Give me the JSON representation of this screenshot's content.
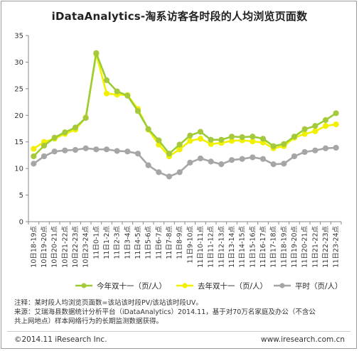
{
  "chart_data": {
    "type": "line",
    "title": "iDataAnalytics-淘系访客各时段的人均浏览页面数",
    "ylim": [
      0,
      35
    ],
    "yticks": [
      0,
      5,
      10,
      15,
      20,
      25,
      30,
      35
    ],
    "categories": [
      "10日18-19点",
      "10日19-20点",
      "10日20-21点",
      "10日21-22点",
      "10日22-23点",
      "10日23-24点",
      "11日0-1点",
      "11日1-2点",
      "11日2-3点",
      "11日3-4点",
      "11日4-5点",
      "11日5-6点",
      "11日6-7点",
      "11日7-8点",
      "11日8-9点",
      "11日9-10点",
      "11日10-11点",
      "11日11-12点",
      "11日12-13点",
      "11日13-14点",
      "11日14-15点",
      "11日15-16点",
      "11日16-17点",
      "11日17-18点",
      "11日18-19点",
      "11日19-20点",
      "11日20-21点",
      "11日21-22点",
      "11日22-23点",
      "11日23-24点"
    ],
    "series": [
      {
        "name": "今年双十一（页/人）",
        "color": "#9acd32",
        "marker_color": "#a6c83c",
        "values": [
          12.3,
          14.3,
          15.8,
          16.8,
          17.7,
          19.5,
          31.7,
          26.6,
          24.5,
          23.7,
          20.8,
          17.4,
          15.3,
          12.8,
          14.5,
          16.2,
          16.9,
          15.4,
          15.4,
          16.0,
          15.9,
          16.0,
          15.6,
          14.2,
          14.6,
          16.0,
          17.4,
          18.0,
          19.1,
          20.4
        ]
      },
      {
        "name": "去年双十一（页/人）",
        "color": "#f2f200",
        "marker_color": "#f0f000",
        "values": [
          13.7,
          15.0,
          15.6,
          16.5,
          17.3,
          19.6,
          31.5,
          24.1,
          23.9,
          23.8,
          21.2,
          17.3,
          14.5,
          12.3,
          13.6,
          15.2,
          15.6,
          14.6,
          14.8,
          15.2,
          15.3,
          15.1,
          14.9,
          13.8,
          14.2,
          15.8,
          16.5,
          17.0,
          18.0,
          18.3
        ]
      },
      {
        "name": "平时（页/人）",
        "color": "#a6a6a6",
        "marker_color": "#a6a6a6",
        "values": [
          10.9,
          12.3,
          13.2,
          13.4,
          13.5,
          13.8,
          13.6,
          13.6,
          13.3,
          13.2,
          12.8,
          10.6,
          9.3,
          8.5,
          9.3,
          11.1,
          11.9,
          11.3,
          10.8,
          11.6,
          11.8,
          12.1,
          11.8,
          10.8,
          10.9,
          12.3,
          13.1,
          13.4,
          13.8,
          13.9
        ]
      }
    ],
    "grid": false,
    "legend": "bottom"
  },
  "notes": {
    "line1": "注释：某时段人均浏览页面数=该站该时段PV/该站该时段UV。",
    "line2": "来源：艾瑞海县数据统计分析平台（iDataAnalytics）2014.11，基于对70万名家庭及办公（不含公",
    "line3": "共上网地点）样本网络行为的长期监测数据获得。"
  },
  "footer": {
    "copyright": "©2014.11 iResearch Inc.",
    "site": "www.iresearch.com.cn"
  }
}
